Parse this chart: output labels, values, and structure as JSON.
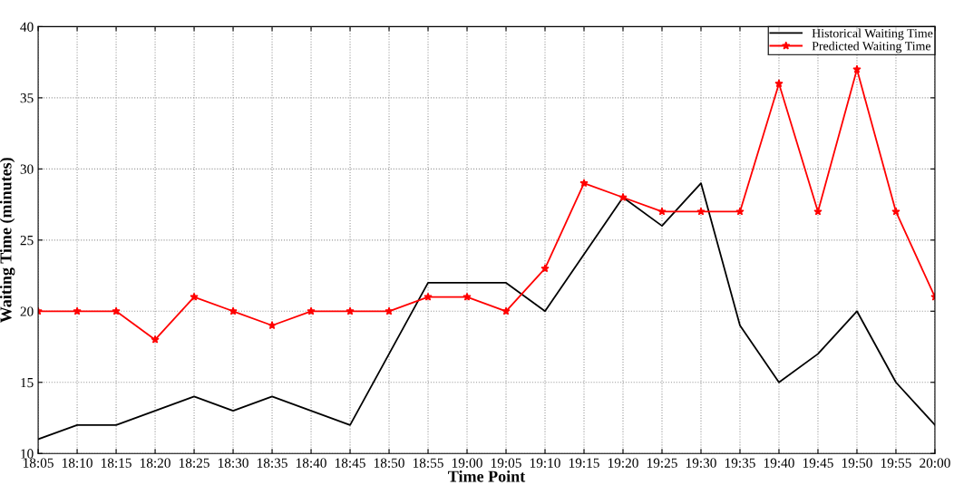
{
  "chart_data": {
    "type": "line",
    "xlabel": "Time Point",
    "ylabel": "Waiting Time (minutes)",
    "categories": [
      "18:05",
      "18:10",
      "18:15",
      "18:20",
      "18:25",
      "18:30",
      "18:35",
      "18:40",
      "18:45",
      "18:50",
      "18:55",
      "19:00",
      "19:05",
      "19:10",
      "19:15",
      "19:20",
      "19:25",
      "19:30",
      "19:35",
      "19:40",
      "19:45",
      "19:50",
      "19:55",
      "20:00"
    ],
    "series": [
      {
        "name": "Historical Waiting Time",
        "color": "#000000",
        "marker": "none",
        "values": [
          11,
          12,
          12,
          13,
          14,
          13,
          14,
          13,
          12,
          17,
          22,
          22,
          22,
          20,
          24,
          28,
          26,
          29,
          19,
          15,
          17,
          20,
          15,
          12
        ]
      },
      {
        "name": "Predicted Waiting Time",
        "color": "#ff0000",
        "marker": "star",
        "values": [
          20,
          20,
          20,
          18,
          21,
          20,
          19,
          20,
          20,
          20,
          21,
          21,
          20,
          23,
          29,
          28,
          27,
          27,
          27,
          36,
          27,
          37,
          27,
          21
        ]
      }
    ],
    "ylim": [
      10,
      40
    ],
    "yticks": [
      10,
      15,
      20,
      25,
      30,
      35,
      40
    ],
    "grid": true,
    "legend": "top right",
    "line_style": "solid"
  }
}
